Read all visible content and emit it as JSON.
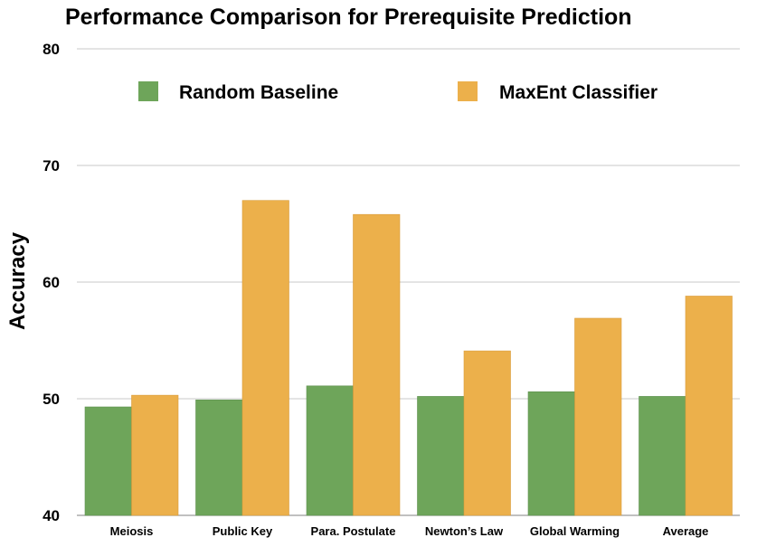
{
  "chart_data": {
    "type": "bar",
    "title": "Performance Comparison for Prerequisite Prediction",
    "ylabel": "Accuracy",
    "xlabel": "",
    "ylim": [
      40,
      80
    ],
    "yticks": [
      40,
      50,
      60,
      70,
      80
    ],
    "grid": true,
    "legend_position": "top",
    "categories": [
      "Meiosis",
      "Public Key",
      "Para. Postulate",
      "Newton’s Law",
      "Global Warming",
      "Average"
    ],
    "series": [
      {
        "name": "Random Baseline",
        "color": "#6ea55a",
        "values": [
          49.3,
          49.9,
          51.1,
          50.2,
          50.6,
          50.2
        ]
      },
      {
        "name": "MaxEnt Classifier",
        "color": "#ecb04b",
        "values": [
          50.3,
          67.0,
          65.8,
          54.1,
          56.9,
          58.8
        ]
      }
    ]
  }
}
